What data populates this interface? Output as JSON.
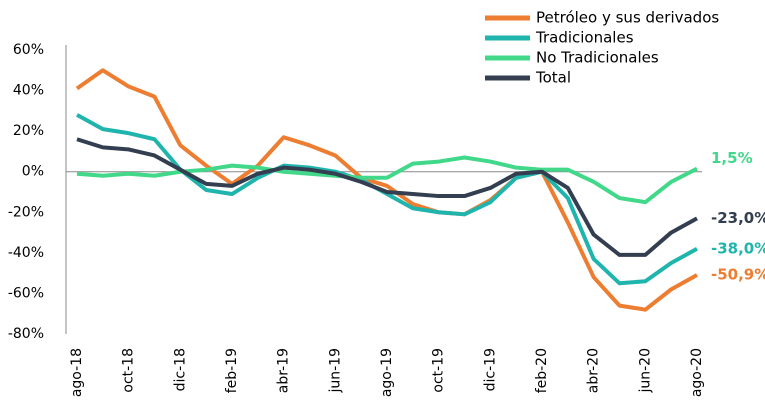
{
  "chart_data": {
    "type": "line",
    "categories": [
      "ago-18",
      null,
      "oct-18",
      null,
      "dic-18",
      null,
      "feb-19",
      null,
      "abr-19",
      null,
      "jun-19",
      null,
      "ago-19",
      null,
      "oct-19",
      null,
      "dic-19",
      null,
      "feb-20",
      null,
      "abr-20",
      null,
      "jun-20",
      null,
      "ago-20"
    ],
    "series": [
      {
        "name": "Petróleo y sus derivados",
        "color": "#ed7d31",
        "values": [
          41,
          50,
          42,
          37,
          13,
          3,
          -6,
          3,
          17,
          13,
          8,
          -3,
          -7,
          -16,
          -20,
          -21,
          -14,
          -3,
          0,
          -25,
          -52,
          -66,
          -68,
          -58,
          -50.9
        ],
        "value_labels": [
          null,
          null,
          null,
          null,
          null,
          null,
          null,
          null,
          null,
          null,
          null,
          null,
          null,
          null,
          null,
          null,
          null,
          null,
          null,
          null,
          null,
          null,
          null,
          null,
          "-50,9%"
        ]
      },
      {
        "name": "Tradicionales",
        "color": "#1fb5ad",
        "values": [
          28,
          21,
          19,
          16,
          1,
          -9,
          -11,
          -3,
          3,
          2,
          0,
          -4,
          -11,
          -18,
          -20,
          -21,
          -15,
          -3,
          0,
          -13,
          -43,
          -55,
          -54,
          -45,
          -38
        ],
        "value_labels": [
          null,
          null,
          null,
          null,
          null,
          null,
          null,
          null,
          null,
          null,
          null,
          null,
          null,
          null,
          null,
          null,
          null,
          null,
          null,
          null,
          null,
          null,
          null,
          null,
          "-38,0%"
        ]
      },
      {
        "name": "No Tradicionales",
        "color": "#41d88a",
        "values": [
          -1,
          -2,
          -1,
          -2,
          0,
          1,
          3,
          2,
          0,
          -1,
          -2,
          -3,
          -3,
          4,
          5,
          7,
          5,
          2,
          1,
          1,
          -5,
          -13,
          -15,
          -5,
          1.5
        ],
        "value_labels": [
          null,
          null,
          null,
          null,
          null,
          null,
          null,
          null,
          null,
          null,
          null,
          null,
          null,
          null,
          null,
          null,
          null,
          null,
          null,
          null,
          null,
          null,
          null,
          null,
          "1,5%"
        ]
      },
      {
        "name": "Total",
        "color": "#333f50",
        "values": [
          16,
          12,
          11,
          8,
          1,
          -6,
          -7,
          -1,
          2,
          1,
          -1,
          -5,
          -10,
          -11,
          -12,
          -12,
          -8,
          -1,
          0,
          -8,
          -31,
          -41,
          -41,
          -30,
          -23
        ],
        "value_labels": [
          null,
          null,
          null,
          null,
          null,
          null,
          null,
          null,
          null,
          null,
          null,
          null,
          null,
          null,
          null,
          null,
          null,
          null,
          null,
          null,
          null,
          null,
          null,
          null,
          "-23,0%"
        ]
      }
    ],
    "ylim": [
      -80,
      60
    ],
    "yticks": [
      {
        "value": 60,
        "label": "60%"
      },
      {
        "value": 40,
        "label": "40%"
      },
      {
        "value": 20,
        "label": "20%"
      },
      {
        "value": 0,
        "label": "0%"
      },
      {
        "value": -20,
        "label": "-20%"
      },
      {
        "value": -40,
        "label": "-40%"
      },
      {
        "value": -60,
        "label": "-60%"
      },
      {
        "value": -80,
        "label": "-80%"
      }
    ],
    "grid": false,
    "legend": "top-right"
  }
}
